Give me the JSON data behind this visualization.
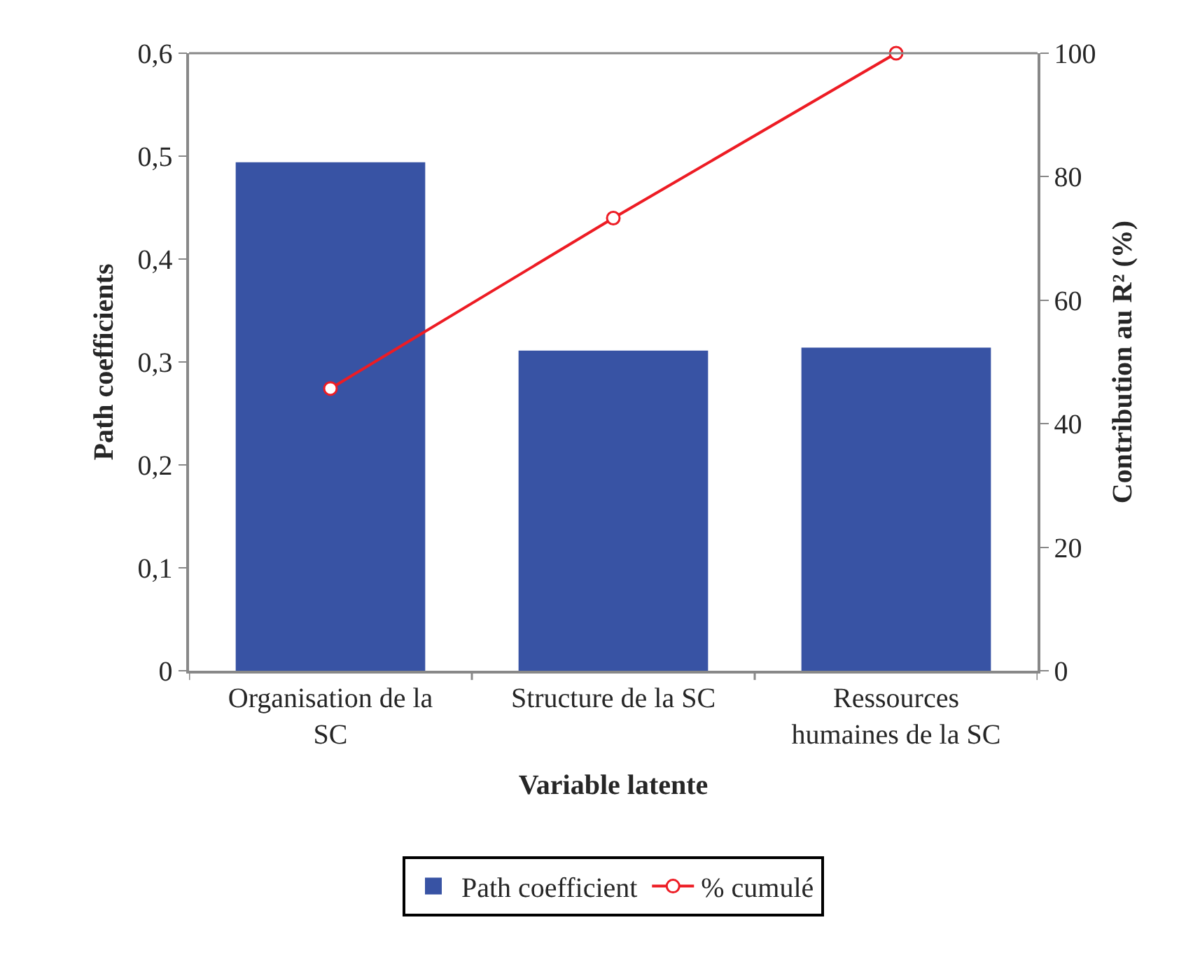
{
  "chart_data": {
    "type": "bar",
    "xlabel": "Variable latente",
    "ylabel": "Path coefficients",
    "y2label": "Contribution au R² (%)",
    "categories": [
      "Organisation de la SC",
      "Structure de la SC",
      "Ressources humaines de la SC"
    ],
    "series": [
      {
        "name": "Path coefficient",
        "color": "#3853a4",
        "values": [
          0.494,
          0.311,
          0.314
        ]
      },
      {
        "name": "% cumulé",
        "type": "line",
        "axis": "y2",
        "color": "#ed1c24",
        "marker": "circle",
        "line_style": "solid",
        "values": [
          45.7,
          73.3,
          100
        ]
      }
    ],
    "ylim": [
      0,
      0.6
    ],
    "yticks": [
      0,
      {
        "value": 0.1,
        "label": "0,1"
      },
      {
        "value": 0.2,
        "label": "0,2"
      },
      {
        "value": 0.3,
        "label": "0,3"
      },
      {
        "value": 0.4,
        "label": "0,4"
      },
      {
        "value": 0.5,
        "label": "0,5"
      },
      {
        "value": 0.6,
        "label": "0,6"
      }
    ],
    "y2lim": [
      0,
      100
    ],
    "y2ticks": [
      0,
      20,
      40,
      60,
      80,
      100
    ],
    "grid": false,
    "legend": "bottom"
  }
}
